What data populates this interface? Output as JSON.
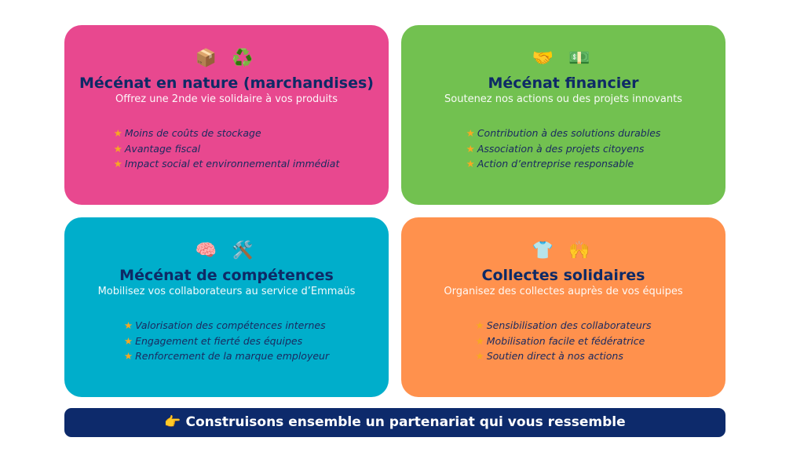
{
  "cards": [
    {
      "icons": "📦 ♻️",
      "title": "Mécénat en nature (marchandises)",
      "subtitle": "Offrez une 2nde vie solidaire à vos produits",
      "items": [
        "Moins de coûts de stockage",
        "Avantage fiscal",
        "Impact social et environnemental immédiat"
      ],
      "color": "#E8488F"
    },
    {
      "icons": "🤝 💵",
      "title": "Mécénat financier",
      "subtitle": "Soutenez nos actions ou des projets innovants",
      "items": [
        "Contribution à des solutions durables",
        "Association à des projets citoyens",
        "Action d’entreprise responsable"
      ],
      "color": "#72C150"
    },
    {
      "icons": "🧠 🛠️",
      "title": "Mécénat de compétences",
      "subtitle": "Mobilisez vos collaborateurs au service d’Emmaüs",
      "items": [
        "Valorisation des compétences internes",
        "Engagement et fierté des équipes",
        "Renforcement de la marque employeur"
      ],
      "color": "#00AECB"
    },
    {
      "icons": "👕 🙌",
      "title": "Collectes solidaires",
      "subtitle": "Organisez des collectes auprès de vos équipes",
      "items": [
        "Sensibilisation des collaborateurs",
        "Mobilisation facile et fédératrice",
        "Soutien direct à nos actions"
      ],
      "color": "#FF914D"
    }
  ],
  "star": "★",
  "banner": {
    "icon": "👉",
    "text": "Construisons ensemble un partenariat qui vous ressemble",
    "color": "#0D2A6B"
  }
}
